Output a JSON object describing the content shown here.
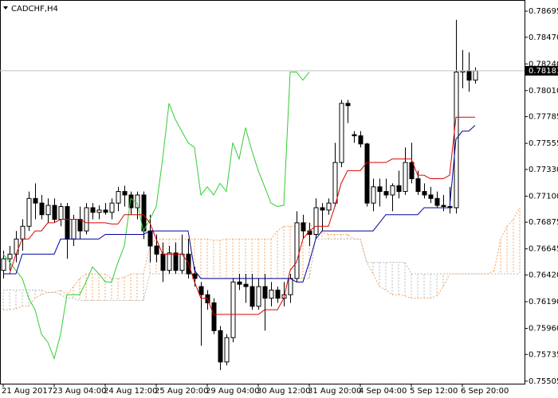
{
  "chart_data": {
    "type": "candlestick",
    "title": "CADCHF,H4",
    "categories": [
      "21 Aug 2017",
      null,
      null,
      null,
      null,
      null,
      null,
      null,
      "23 Aug 04:00",
      null,
      null,
      null,
      null,
      null,
      null,
      null,
      "24 Aug 12:00",
      null,
      null,
      null,
      null,
      null,
      null,
      null,
      "25 Aug 20:00",
      null,
      null,
      null,
      null,
      null,
      null,
      null,
      "29 Aug 04:00",
      null,
      null,
      null,
      null,
      null,
      null,
      null,
      "30 Aug 12:00",
      null,
      null,
      null,
      null,
      null,
      null,
      null,
      "31 Aug 20:00",
      null,
      null,
      null,
      null,
      null,
      null,
      null,
      "4 Sep 04:00",
      null,
      null,
      null,
      null,
      null,
      null,
      null,
      "5 Sep 12:00",
      null,
      null,
      null,
      null,
      null,
      null,
      null,
      "6 Sep 20:00",
      null,
      null,
      null,
      null,
      null,
      null,
      null,
      null,
      null
    ],
    "open": [
      0.7646,
      0.7656,
      0.766,
      0.7673,
      0.7684,
      0.7708,
      0.7704,
      0.7694,
      0.7702,
      0.769,
      0.7701,
      0.7673,
      0.769,
      0.768,
      0.77,
      0.7696,
      0.7698,
      0.7696,
      0.7704,
      0.7714,
      0.7711,
      0.77,
      0.7711,
      0.768,
      0.7667,
      0.766,
      0.7646,
      0.7661,
      0.7646,
      0.766,
      0.7643,
      0.7632,
      0.7625,
      0.7618,
      0.7594,
      0.7567,
      0.7588,
      0.7636,
      0.7634,
      0.7632,
      0.7615,
      0.7632,
      0.7622,
      0.7629,
      0.7622,
      0.7625,
      0.7639,
      0.7687,
      0.768,
      0.7677,
      0.77,
      0.7698,
      0.7704,
      0.7739,
      0.779,
      0.7763,
      0.7762,
      0.7755,
      0.7704,
      0.7718,
      0.7714,
      0.7711,
      0.7719,
      0.7714,
      0.7739,
      0.7725,
      0.7714,
      0.7711,
      0.7708,
      0.7702,
      0.7701,
      0.77,
      0.7817,
      0.7818,
      0.781,
      null,
      null,
      null,
      null,
      null,
      null,
      null
    ],
    "high": [
      0.7663,
      0.7667,
      0.768,
      0.769,
      0.7714,
      0.7721,
      0.7711,
      0.7708,
      0.7708,
      0.7704,
      0.7704,
      0.7694,
      0.7701,
      0.7704,
      0.7704,
      0.7702,
      0.7704,
      0.7708,
      0.7718,
      0.7719,
      0.7714,
      0.7714,
      0.7714,
      0.7694,
      0.7677,
      0.767,
      0.7667,
      0.767,
      0.7677,
      0.7673,
      0.7649,
      0.7636,
      0.7629,
      0.7622,
      0.7598,
      0.7591,
      0.7639,
      0.7643,
      0.7643,
      0.7643,
      0.7639,
      0.7643,
      0.7636,
      0.7632,
      0.7636,
      0.7643,
      0.7697,
      0.7694,
      0.7687,
      0.7708,
      0.7704,
      0.7708,
      0.7756,
      0.7793,
      0.7793,
      0.7766,
      0.7766,
      0.7756,
      0.7725,
      0.7725,
      0.7725,
      0.7721,
      0.7732,
      0.7752,
      0.7756,
      0.7732,
      0.7721,
      0.7718,
      0.7714,
      0.7711,
      0.7718,
      0.7862,
      0.7836,
      0.7834,
      0.7821,
      null,
      null,
      null,
      null,
      null,
      null,
      null
    ],
    "low": [
      0.7639,
      0.7646,
      0.7653,
      0.7663,
      0.768,
      0.769,
      0.769,
      0.7687,
      0.7687,
      0.7684,
      0.7656,
      0.7667,
      0.7673,
      0.7677,
      0.769,
      0.769,
      0.7694,
      0.769,
      0.7697,
      0.7701,
      0.7694,
      0.769,
      0.7673,
      0.7653,
      0.7653,
      0.7636,
      0.7643,
      0.7643,
      0.7643,
      0.7639,
      0.7632,
      0.7581,
      0.7612,
      0.7591,
      0.756,
      0.7564,
      0.7584,
      0.7629,
      0.7618,
      0.7612,
      0.7612,
      0.7594,
      0.7615,
      0.7618,
      0.7615,
      0.7618,
      0.7636,
      0.7673,
      0.7667,
      0.7673,
      0.768,
      0.7694,
      0.7701,
      0.7735,
      0.7773,
      0.7756,
      0.7752,
      0.7701,
      0.7697,
      0.7701,
      0.7708,
      0.7697,
      0.7708,
      0.7711,
      0.7721,
      0.7711,
      0.7708,
      0.7704,
      0.77,
      0.7697,
      0.7695,
      0.7695,
      0.7803,
      0.78,
      0.7807,
      null,
      null,
      null,
      null,
      null,
      null,
      null
    ],
    "close": [
      0.7656,
      0.766,
      0.7673,
      0.7684,
      0.7708,
      0.7704,
      0.7694,
      0.7702,
      0.769,
      0.7701,
      0.7673,
      0.769,
      0.768,
      0.77,
      0.7696,
      0.7698,
      0.7696,
      0.7704,
      0.7714,
      0.7711,
      0.77,
      0.7711,
      0.768,
      0.7667,
      0.766,
      0.7646,
      0.7661,
      0.7646,
      0.766,
      0.7643,
      0.7639,
      0.7625,
      0.7618,
      0.7594,
      0.7567,
      0.7588,
      0.7636,
      0.7634,
      0.7632,
      0.7615,
      0.7632,
      0.7622,
      0.7629,
      0.7622,
      0.7625,
      0.7639,
      0.7687,
      0.768,
      0.7677,
      0.77,
      0.7698,
      0.7704,
      0.7739,
      0.779,
      0.7788,
      0.7762,
      0.7755,
      0.7704,
      0.7718,
      0.7714,
      0.7711,
      0.7719,
      0.7714,
      0.7739,
      0.7725,
      0.7714,
      0.7711,
      0.7708,
      0.7702,
      0.7701,
      0.77,
      0.7817,
      0.7818,
      0.781,
      0.7818,
      null,
      null,
      null,
      null,
      null,
      null,
      null
    ],
    "up_color": "#ffffff",
    "down_color": "#000000",
    "edge_color": "#000000",
    "lines": [
      {
        "color": "#32cd32",
        "dashed": false,
        "values": [
          0.766,
          0.7653,
          0.7646,
          0.7639,
          0.7622,
          0.7612,
          0.7591,
          0.7584,
          0.757,
          0.7591,
          0.7625,
          0.7625,
          0.7625,
          0.7636,
          0.7649,
          0.7643,
          0.7636,
          0.7636,
          0.7653,
          0.7667,
          0.7708,
          0.7704,
          0.768,
          0.769,
          0.7701,
          0.7742,
          0.779,
          0.7776,
          0.7766,
          0.7756,
          0.7752,
          0.7711,
          0.7718,
          0.7711,
          0.7721,
          0.7714,
          0.7756,
          0.7742,
          0.7769,
          0.7749,
          0.7732,
          0.7718,
          0.7704,
          0.7701,
          0.7702,
          0.7817,
          0.7817,
          0.781,
          0.7817,
          null,
          null,
          null,
          null,
          null,
          null,
          null,
          null,
          null,
          null,
          null,
          null,
          null,
          null,
          null,
          null,
          null,
          null,
          null,
          null,
          null,
          null,
          null,
          null,
          null,
          null,
          null,
          null,
          null,
          null,
          null,
          null,
          null
        ]
      },
      {
        "color": "#e00000",
        "dashed": false,
        "values": [
          0.7643,
          0.7643,
          0.766,
          0.7673,
          0.7673,
          0.768,
          0.768,
          0.7687,
          0.7687,
          0.769,
          0.769,
          0.769,
          0.769,
          0.7687,
          0.7687,
          0.7687,
          0.7687,
          0.7686,
          0.7686,
          0.7694,
          0.7694,
          0.7694,
          0.7694,
          0.7687,
          0.7673,
          0.766,
          0.766,
          0.766,
          0.766,
          0.7653,
          0.7636,
          0.7622,
          0.7622,
          0.7608,
          0.7608,
          0.7608,
          0.7608,
          0.7608,
          0.7608,
          0.7608,
          0.7608,
          0.7612,
          0.7612,
          0.7612,
          0.7622,
          0.7646,
          0.7653,
          0.7673,
          0.768,
          0.7684,
          0.7684,
          0.7684,
          0.7701,
          0.7721,
          0.7732,
          0.7732,
          0.7732,
          0.7739,
          0.7739,
          0.7739,
          0.7739,
          0.7742,
          0.7742,
          0.7742,
          0.7742,
          0.7728,
          0.7728,
          0.7725,
          0.7725,
          0.7725,
          0.7728,
          0.7778,
          0.7778,
          0.7778,
          0.7778,
          null,
          null,
          null,
          null,
          null,
          null,
          null
        ]
      },
      {
        "color": "#0000a0",
        "dashed": false,
        "values": [
          0.7643,
          0.7643,
          0.7643,
          0.766,
          0.766,
          0.766,
          0.766,
          0.766,
          0.766,
          0.7673,
          0.7673,
          0.7673,
          0.7673,
          0.7673,
          0.7673,
          0.7673,
          0.7677,
          0.7677,
          0.7677,
          0.7677,
          0.7677,
          0.7677,
          0.7677,
          0.768,
          0.768,
          0.768,
          0.768,
          0.768,
          0.768,
          0.768,
          0.7646,
          0.7639,
          0.7639,
          0.7639,
          0.7639,
          0.7639,
          0.7639,
          0.7639,
          0.7639,
          0.7639,
          0.7639,
          0.7639,
          0.7639,
          0.7639,
          0.7639,
          0.7639,
          0.7636,
          0.7636,
          0.7653,
          0.7673,
          0.768,
          0.768,
          0.768,
          0.768,
          0.768,
          0.768,
          0.768,
          0.768,
          0.768,
          0.7687,
          0.7694,
          0.7694,
          0.7694,
          0.7694,
          0.7694,
          0.7694,
          0.77,
          0.77,
          0.77,
          0.77,
          0.77,
          0.7759,
          0.7766,
          0.7766,
          0.7771,
          null,
          null,
          null,
          null,
          null,
          null,
          null
        ]
      },
      {
        "color": "#f4a460",
        "dashed": true,
        "values": [
          0.7612,
          0.7612,
          0.7613,
          0.7615,
          0.7615,
          0.7622,
          0.7625,
          0.7627,
          0.7627,
          0.7629,
          0.7625,
          0.7632,
          0.7639,
          0.7643,
          0.7643,
          0.7643,
          0.7643,
          0.7639,
          0.7639,
          0.764,
          0.7643,
          0.7643,
          0.7643,
          0.7667,
          0.7673,
          0.7673,
          0.7673,
          0.7673,
          0.7673,
          0.7673,
          0.7673,
          0.7673,
          0.7673,
          0.7672,
          0.7672,
          0.7673,
          0.7673,
          0.7673,
          0.7673,
          0.7673,
          0.7673,
          0.7673,
          0.7673,
          0.768,
          0.7684,
          0.7684,
          0.7684,
          0.7687,
          0.7687,
          0.768,
          0.7679,
          0.7677,
          0.7677,
          0.7677,
          0.7677,
          0.7673,
          0.7673,
          0.7653,
          0.7643,
          0.7632,
          0.7629,
          0.7625,
          0.7625,
          0.7624,
          0.7622,
          0.7622,
          0.7622,
          0.7622,
          0.7624,
          0.7632,
          0.7643,
          0.7643,
          0.7643,
          0.7643,
          0.7643,
          0.7643,
          0.7643,
          0.7646,
          0.7673,
          0.7684,
          0.769,
          0.77
        ]
      },
      {
        "color": "#b8b8b8",
        "dashed": true,
        "values": [
          0.7629,
          0.7629,
          0.7629,
          0.7629,
          0.7629,
          0.7629,
          0.7629,
          0.7627,
          0.7627,
          0.7625,
          0.7622,
          0.7622,
          0.762,
          0.762,
          0.762,
          0.762,
          0.762,
          0.762,
          0.762,
          0.762,
          0.762,
          0.762,
          0.762,
          0.7643,
          0.7643,
          0.7643,
          0.7643,
          0.7643,
          0.7643,
          0.7643,
          0.7643,
          0.7639,
          0.7639,
          0.7639,
          0.7639,
          0.7639,
          0.7639,
          0.7639,
          0.7639,
          0.7639,
          0.7639,
          0.7639,
          0.7639,
          0.7639,
          0.7639,
          0.7639,
          0.7639,
          0.7639,
          0.7639,
          0.7673,
          0.7673,
          0.7673,
          0.7673,
          0.7673,
          0.7673,
          0.7673,
          0.7673,
          0.7653,
          0.7653,
          0.7653,
          0.7653,
          0.7653,
          0.7653,
          0.7653,
          0.7643,
          0.7643,
          0.7643,
          0.7643,
          0.7643,
          0.7643,
          0.7643,
          0.7643,
          0.7643,
          0.7643,
          0.7643,
          0.7643,
          0.7643,
          0.7643,
          0.7643,
          0.7643,
          0.7643,
          0.7643
        ]
      }
    ],
    "cloud": true,
    "ylim": [
      0.75483,
      0.78791
    ],
    "yticks": [
      0.78695,
      {
        "value": 0.7847,
        "label": "0.78470"
      },
      {
        "value": 0.7824,
        "label": "0.78240"
      },
      {
        "value": 0.7801,
        "label": "0.78010"
      },
      0.77785,
      0.77555,
      {
        "value": 0.7733,
        "label": "0.77330"
      },
      {
        "value": 0.771,
        "label": "0.77100"
      },
      0.76875,
      0.76645,
      {
        "value": 0.7642,
        "label": "0.76420"
      },
      {
        "value": 0.7619,
        "label": "0.76190"
      },
      {
        "value": 0.7596,
        "label": "0.75960"
      },
      0.75735,
      0.75505
    ],
    "last_price": 0.78181,
    "last_price_line_color": "#c0c0c0"
  }
}
